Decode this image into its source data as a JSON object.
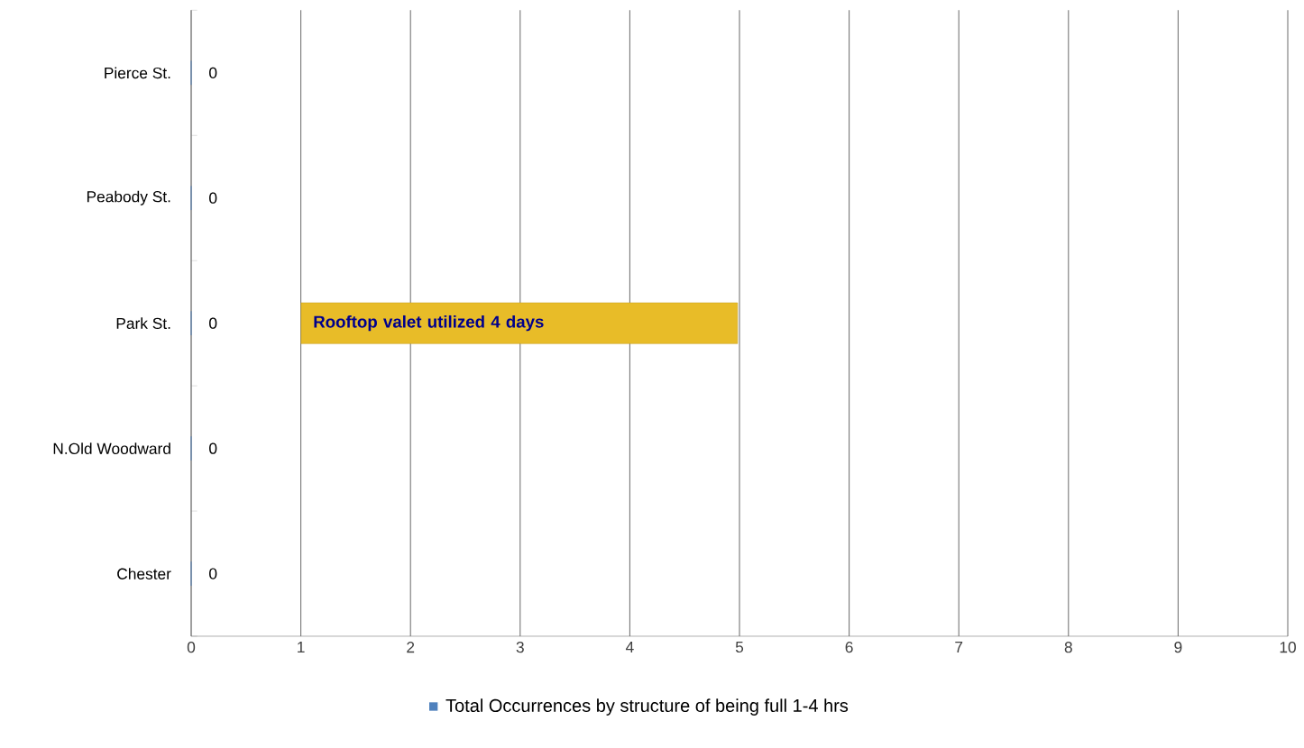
{
  "chart_data": {
    "type": "bar",
    "orientation": "horizontal",
    "categories": [
      "Pierce St.",
      "Peabody St.",
      "Park St.",
      "N.Old Woodward",
      "Chester"
    ],
    "series": [
      {
        "name": "Total Occurrences by structure of being full 1-4 hrs",
        "color": "#4f81bd",
        "values": [
          0,
          0,
          0,
          0,
          0
        ]
      }
    ],
    "xlim": [
      0,
      10
    ],
    "xticks": [
      0,
      1,
      2,
      3,
      4,
      5,
      6,
      7,
      8,
      9,
      10
    ],
    "grid": "x",
    "legend": "bottom",
    "data_labels": true,
    "annotations": [
      "Rooftop valet utilized 4 days"
    ]
  }
}
